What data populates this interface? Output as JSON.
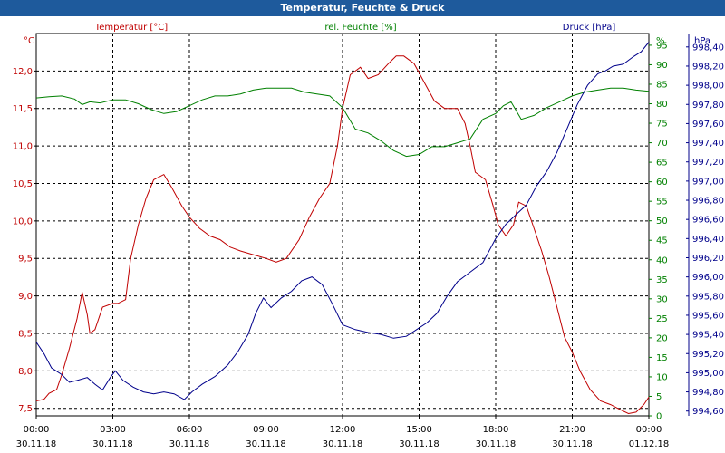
{
  "window": {
    "title": "Temperatur, Feuchte & Druck"
  },
  "chart_data": {
    "type": "line",
    "title": "Temperatur, Feuchte & Druck",
    "grid": true,
    "colors": {
      "temperature": "#c00000",
      "humidity": "#008000",
      "pressure": "#00008b",
      "title_bar": "#1e5a9c",
      "grid": "#000000"
    },
    "x": {
      "range_hours": [
        0,
        24
      ],
      "ticks": [
        {
          "time": "00:00",
          "date": "30.11.18"
        },
        {
          "time": "03:00",
          "date": "30.11.18"
        },
        {
          "time": "06:00",
          "date": "30.11.18"
        },
        {
          "time": "09:00",
          "date": "30.11.18"
        },
        {
          "time": "12:00",
          "date": "30.11.18"
        },
        {
          "time": "15:00",
          "date": "30.11.18"
        },
        {
          "time": "18:00",
          "date": "30.11.18"
        },
        {
          "time": "21:00",
          "date": "30.11.18"
        },
        {
          "time": "00:00",
          "date": "01.12.18"
        }
      ]
    },
    "axes": {
      "temperature": {
        "label": "Temperatur [°C]",
        "unit": "°C",
        "ylim": [
          7.4,
          12.5
        ],
        "ticks": [
          "7,5",
          "8,0",
          "8,5",
          "9,0",
          "9,5",
          "10,0",
          "10,5",
          "11,0",
          "11,5",
          "12,0"
        ]
      },
      "humidity": {
        "label": "rel. Feuchte [%]",
        "unit": "%",
        "ylim": [
          0,
          98
        ],
        "ticks": [
          "0",
          "5",
          "10",
          "15",
          "20",
          "25",
          "30",
          "35",
          "40",
          "45",
          "50",
          "55",
          "60",
          "65",
          "70",
          "75",
          "80",
          "85",
          "90",
          "95"
        ]
      },
      "pressure": {
        "label": "Druck [hPa]",
        "unit": "hPa",
        "ylim": [
          994.55,
          998.54
        ],
        "ticks": [
          "994,60",
          "994,80",
          "995,00",
          "995,20",
          "995,40",
          "995,60",
          "995,80",
          "996,00",
          "996,20",
          "996,40",
          "996,60",
          "996,80",
          "997,00",
          "997,20",
          "997,40",
          "997,60",
          "997,80",
          "998,00",
          "998,20",
          "998,40"
        ]
      }
    },
    "series": [
      {
        "name": "Temperatur [°C]",
        "axis": "temperature",
        "color": "#c00000",
        "points": [
          [
            0,
            7.6
          ],
          [
            0.3,
            7.62
          ],
          [
            0.5,
            7.7
          ],
          [
            0.8,
            7.75
          ],
          [
            1.0,
            7.95
          ],
          [
            1.3,
            8.3
          ],
          [
            1.6,
            8.7
          ],
          [
            1.8,
            9.05
          ],
          [
            2.0,
            8.75
          ],
          [
            2.1,
            8.5
          ],
          [
            2.3,
            8.55
          ],
          [
            2.6,
            8.85
          ],
          [
            3.0,
            8.9
          ],
          [
            3.2,
            8.9
          ],
          [
            3.5,
            8.95
          ],
          [
            3.7,
            9.5
          ],
          [
            4.0,
            9.95
          ],
          [
            4.3,
            10.3
          ],
          [
            4.6,
            10.55
          ],
          [
            5.0,
            10.62
          ],
          [
            5.3,
            10.45
          ],
          [
            5.7,
            10.2
          ],
          [
            6.0,
            10.05
          ],
          [
            6.4,
            9.9
          ],
          [
            6.8,
            9.8
          ],
          [
            7.2,
            9.75
          ],
          [
            7.6,
            9.65
          ],
          [
            8.0,
            9.6
          ],
          [
            8.5,
            9.55
          ],
          [
            9.0,
            9.5
          ],
          [
            9.4,
            9.45
          ],
          [
            9.8,
            9.5
          ],
          [
            10.3,
            9.75
          ],
          [
            10.7,
            10.05
          ],
          [
            11.1,
            10.3
          ],
          [
            11.5,
            10.5
          ],
          [
            11.8,
            11.0
          ],
          [
            12.0,
            11.5
          ],
          [
            12.3,
            11.95
          ],
          [
            12.7,
            12.05
          ],
          [
            13.0,
            11.9
          ],
          [
            13.4,
            11.95
          ],
          [
            13.8,
            12.1
          ],
          [
            14.1,
            12.2
          ],
          [
            14.4,
            12.2
          ],
          [
            14.8,
            12.1
          ],
          [
            15.2,
            11.85
          ],
          [
            15.6,
            11.6
          ],
          [
            16.0,
            11.5
          ],
          [
            16.5,
            11.5
          ],
          [
            16.8,
            11.3
          ],
          [
            17.0,
            11.0
          ],
          [
            17.2,
            10.65
          ],
          [
            17.6,
            10.55
          ],
          [
            17.9,
            10.2
          ],
          [
            18.1,
            9.95
          ],
          [
            18.4,
            9.8
          ],
          [
            18.7,
            9.95
          ],
          [
            18.9,
            10.25
          ],
          [
            19.2,
            10.2
          ],
          [
            19.5,
            9.9
          ],
          [
            19.8,
            9.6
          ],
          [
            20.1,
            9.25
          ],
          [
            20.4,
            8.85
          ],
          [
            20.7,
            8.45
          ],
          [
            21.0,
            8.25
          ],
          [
            21.3,
            8.0
          ],
          [
            21.7,
            7.75
          ],
          [
            22.1,
            7.6
          ],
          [
            22.5,
            7.55
          ],
          [
            22.9,
            7.48
          ],
          [
            23.2,
            7.43
          ],
          [
            23.5,
            7.45
          ],
          [
            23.8,
            7.55
          ],
          [
            24.0,
            7.65
          ]
        ]
      },
      {
        "name": "rel. Feuchte [%]",
        "axis": "humidity",
        "color": "#008000",
        "points": [
          [
            0,
            81.5
          ],
          [
            0.5,
            81.8
          ],
          [
            1.0,
            82.0
          ],
          [
            1.5,
            81.2
          ],
          [
            1.8,
            79.8
          ],
          [
            2.1,
            80.5
          ],
          [
            2.5,
            80.2
          ],
          [
            3.0,
            81.0
          ],
          [
            3.5,
            81.0
          ],
          [
            4.0,
            80.0
          ],
          [
            4.5,
            78.5
          ],
          [
            5.0,
            77.5
          ],
          [
            5.5,
            78.0
          ],
          [
            6.0,
            79.5
          ],
          [
            6.5,
            81.0
          ],
          [
            7.0,
            82.0
          ],
          [
            7.5,
            82.0
          ],
          [
            8.0,
            82.5
          ],
          [
            8.5,
            83.5
          ],
          [
            9.0,
            84.0
          ],
          [
            9.5,
            84.0
          ],
          [
            10.0,
            84.0
          ],
          [
            10.5,
            83.0
          ],
          [
            11.0,
            82.5
          ],
          [
            11.5,
            82.0
          ],
          [
            12.0,
            79.0
          ],
          [
            12.5,
            73.5
          ],
          [
            13.0,
            72.5
          ],
          [
            13.5,
            70.5
          ],
          [
            14.0,
            68.0
          ],
          [
            14.5,
            66.5
          ],
          [
            15.0,
            67.0
          ],
          [
            15.5,
            69.0
          ],
          [
            16.0,
            69.0
          ],
          [
            16.5,
            70.0
          ],
          [
            17.0,
            71.0
          ],
          [
            17.5,
            76.0
          ],
          [
            18.0,
            77.5
          ],
          [
            18.3,
            79.5
          ],
          [
            18.6,
            80.5
          ],
          [
            19.0,
            76.0
          ],
          [
            19.5,
            77.0
          ],
          [
            20.0,
            79.0
          ],
          [
            20.5,
            80.5
          ],
          [
            21.0,
            82.0
          ],
          [
            21.5,
            83.0
          ],
          [
            22.0,
            83.5
          ],
          [
            22.5,
            84.0
          ],
          [
            23.0,
            84.0
          ],
          [
            23.5,
            83.5
          ],
          [
            24.0,
            83.2
          ]
        ]
      },
      {
        "name": "Druck [hPa]",
        "axis": "pressure",
        "color": "#00008b",
        "points": [
          [
            0,
            995.32
          ],
          [
            0.3,
            995.2
          ],
          [
            0.6,
            995.05
          ],
          [
            1.0,
            994.98
          ],
          [
            1.3,
            994.9
          ],
          [
            1.6,
            994.92
          ],
          [
            2.0,
            994.95
          ],
          [
            2.3,
            994.88
          ],
          [
            2.6,
            994.82
          ],
          [
            2.9,
            994.95
          ],
          [
            3.1,
            995.02
          ],
          [
            3.4,
            994.92
          ],
          [
            3.8,
            994.85
          ],
          [
            4.2,
            994.8
          ],
          [
            4.6,
            994.78
          ],
          [
            5.0,
            994.8
          ],
          [
            5.4,
            994.78
          ],
          [
            5.8,
            994.72
          ],
          [
            6.1,
            994.8
          ],
          [
            6.5,
            994.88
          ],
          [
            7.0,
            994.96
          ],
          [
            7.5,
            995.08
          ],
          [
            7.9,
            995.22
          ],
          [
            8.3,
            995.4
          ],
          [
            8.6,
            995.62
          ],
          [
            8.9,
            995.78
          ],
          [
            9.2,
            995.68
          ],
          [
            9.6,
            995.78
          ],
          [
            10.0,
            995.85
          ],
          [
            10.4,
            995.96
          ],
          [
            10.8,
            996.0
          ],
          [
            11.2,
            995.92
          ],
          [
            11.6,
            995.72
          ],
          [
            12.0,
            995.5
          ],
          [
            12.5,
            995.45
          ],
          [
            13.0,
            995.42
          ],
          [
            13.5,
            995.4
          ],
          [
            14.0,
            995.36
          ],
          [
            14.5,
            995.38
          ],
          [
            14.9,
            995.45
          ],
          [
            15.3,
            995.52
          ],
          [
            15.7,
            995.62
          ],
          [
            16.1,
            995.8
          ],
          [
            16.5,
            995.95
          ],
          [
            17.0,
            996.05
          ],
          [
            17.5,
            996.15
          ],
          [
            18.0,
            996.4
          ],
          [
            18.4,
            996.55
          ],
          [
            18.8,
            996.65
          ],
          [
            19.2,
            996.75
          ],
          [
            19.6,
            996.95
          ],
          [
            20.0,
            997.1
          ],
          [
            20.4,
            997.3
          ],
          [
            20.8,
            997.55
          ],
          [
            21.2,
            997.8
          ],
          [
            21.6,
            998.0
          ],
          [
            22.0,
            998.12
          ],
          [
            22.3,
            998.15
          ],
          [
            22.6,
            998.2
          ],
          [
            23.0,
            998.22
          ],
          [
            23.4,
            998.3
          ],
          [
            23.7,
            998.35
          ],
          [
            24.0,
            998.45
          ]
        ]
      }
    ]
  }
}
